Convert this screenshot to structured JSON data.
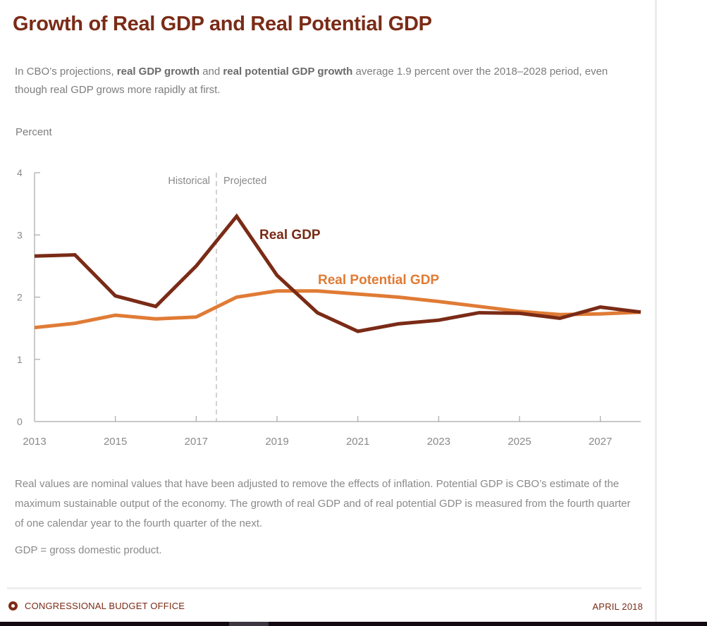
{
  "header": {
    "title": "Growth of Real GDP and Real Potential GDP",
    "subtitle_parts": {
      "p1": "In CBO’s projections, ",
      "b1": "real GDP growth",
      "p2": " and ",
      "b2": "real potential GDP growth",
      "p3": " average 1.9 percent over the 2018–2028 period, even though real GDP grows more rapidly at first."
    }
  },
  "chart_data": {
    "type": "line",
    "title": "Growth of Real GDP and Real Potential GDP",
    "ylabel": "Percent",
    "xlabel": "",
    "ylim": [
      0,
      4
    ],
    "xlim": [
      2013,
      2028
    ],
    "yticks": [
      0,
      1,
      2,
      3,
      4
    ],
    "xticks": [
      2013,
      2015,
      2017,
      2019,
      2021,
      2023,
      2025,
      2027
    ],
    "x": [
      2013,
      2014,
      2015,
      2016,
      2017,
      2018,
      2019,
      2020,
      2021,
      2022,
      2023,
      2024,
      2025,
      2026,
      2027,
      2028
    ],
    "series": [
      {
        "name": "Real GDP",
        "color": "#7a2b16",
        "values": [
          2.66,
          2.68,
          2.02,
          1.85,
          2.5,
          3.3,
          2.35,
          1.75,
          1.45,
          1.57,
          1.63,
          1.75,
          1.74,
          1.66,
          1.84,
          1.76
        ]
      },
      {
        "name": "Real Potential GDP",
        "color": "#e07b35",
        "values": [
          1.51,
          1.58,
          1.71,
          1.65,
          1.68,
          2.0,
          2.1,
          2.1,
          2.05,
          2.0,
          1.93,
          1.85,
          1.77,
          1.72,
          1.73,
          1.76
        ]
      }
    ],
    "divider": {
      "x": 2017.5,
      "left_label": "Historical",
      "right_label": "Projected"
    },
    "legend": "inline-labels",
    "grid": false
  },
  "notes": {
    "text": "Real values are nominal values that have been adjusted to remove the effects of inflation. Potential GDP is CBO’s estimate of the maximum sustainable output of the economy. The growth of real GDP and of real potential GDP is measured from the fourth quarter of one calendar year to the fourth quarter of the next.",
    "gdp_definition": "GDP = gross domestic product."
  },
  "footer": {
    "org": "CONGRESSIONAL BUDGET OFFICE",
    "date": "APRIL 2018"
  }
}
